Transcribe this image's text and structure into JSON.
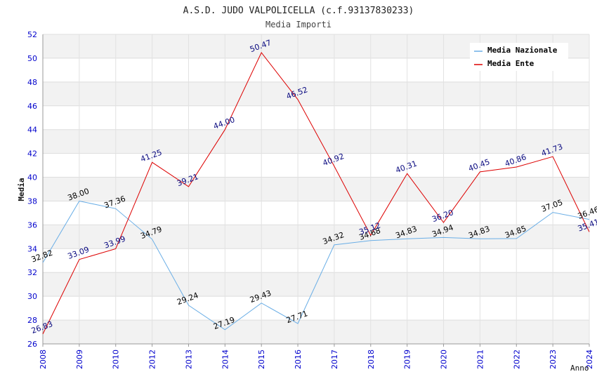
{
  "chart_data": {
    "type": "line",
    "title": "A.S.D. JUDO VALPOLICELLA (c.f.93137830233)",
    "subtitle": "Media Importi",
    "xlabel": "Anno",
    "ylabel": "Media",
    "ylim": [
      26,
      52
    ],
    "y_ticks": [
      "26",
      "28",
      "30",
      "32",
      "34",
      "36",
      "38",
      "40",
      "42",
      "44",
      "46",
      "48",
      "50",
      "52"
    ],
    "categories": [
      "2008",
      "2009",
      "2010",
      "2012",
      "2013",
      "2014",
      "2015",
      "2016",
      "2017",
      "2018",
      "2019",
      "2020",
      "2021",
      "2022",
      "2023",
      "2024"
    ],
    "grid": true,
    "legend_position": "top-right",
    "series": [
      {
        "name": "Media Nazionale",
        "color": "#6aaee6",
        "values": [
          32.82,
          38.0,
          37.36,
          34.79,
          29.24,
          27.19,
          29.43,
          27.71,
          34.32,
          34.68,
          34.83,
          34.94,
          34.83,
          34.85,
          37.05,
          36.46
        ],
        "labels": [
          "32.82",
          "38.00",
          "37.36",
          "34.79",
          "29.24",
          "27.19",
          "29.43",
          "27.71",
          "34.32",
          "34.68",
          "34.83",
          "34.94",
          "34.83",
          "34.85",
          "37.05",
          "36.46"
        ]
      },
      {
        "name": "Media Ente",
        "color": "#dd0000",
        "values": [
          26.83,
          33.09,
          33.99,
          41.25,
          39.21,
          44.0,
          50.47,
          46.52,
          40.92,
          35.12,
          40.31,
          36.2,
          40.45,
          40.86,
          41.73,
          35.41
        ],
        "labels": [
          "26.83",
          "33.09",
          "33.99",
          "41.25",
          "39.21",
          "44.00",
          "50.47",
          "46.52",
          "40.92",
          "35.12",
          "40.31",
          "36.20",
          "40.45",
          "40.86",
          "41.73",
          "35.41"
        ]
      }
    ]
  }
}
